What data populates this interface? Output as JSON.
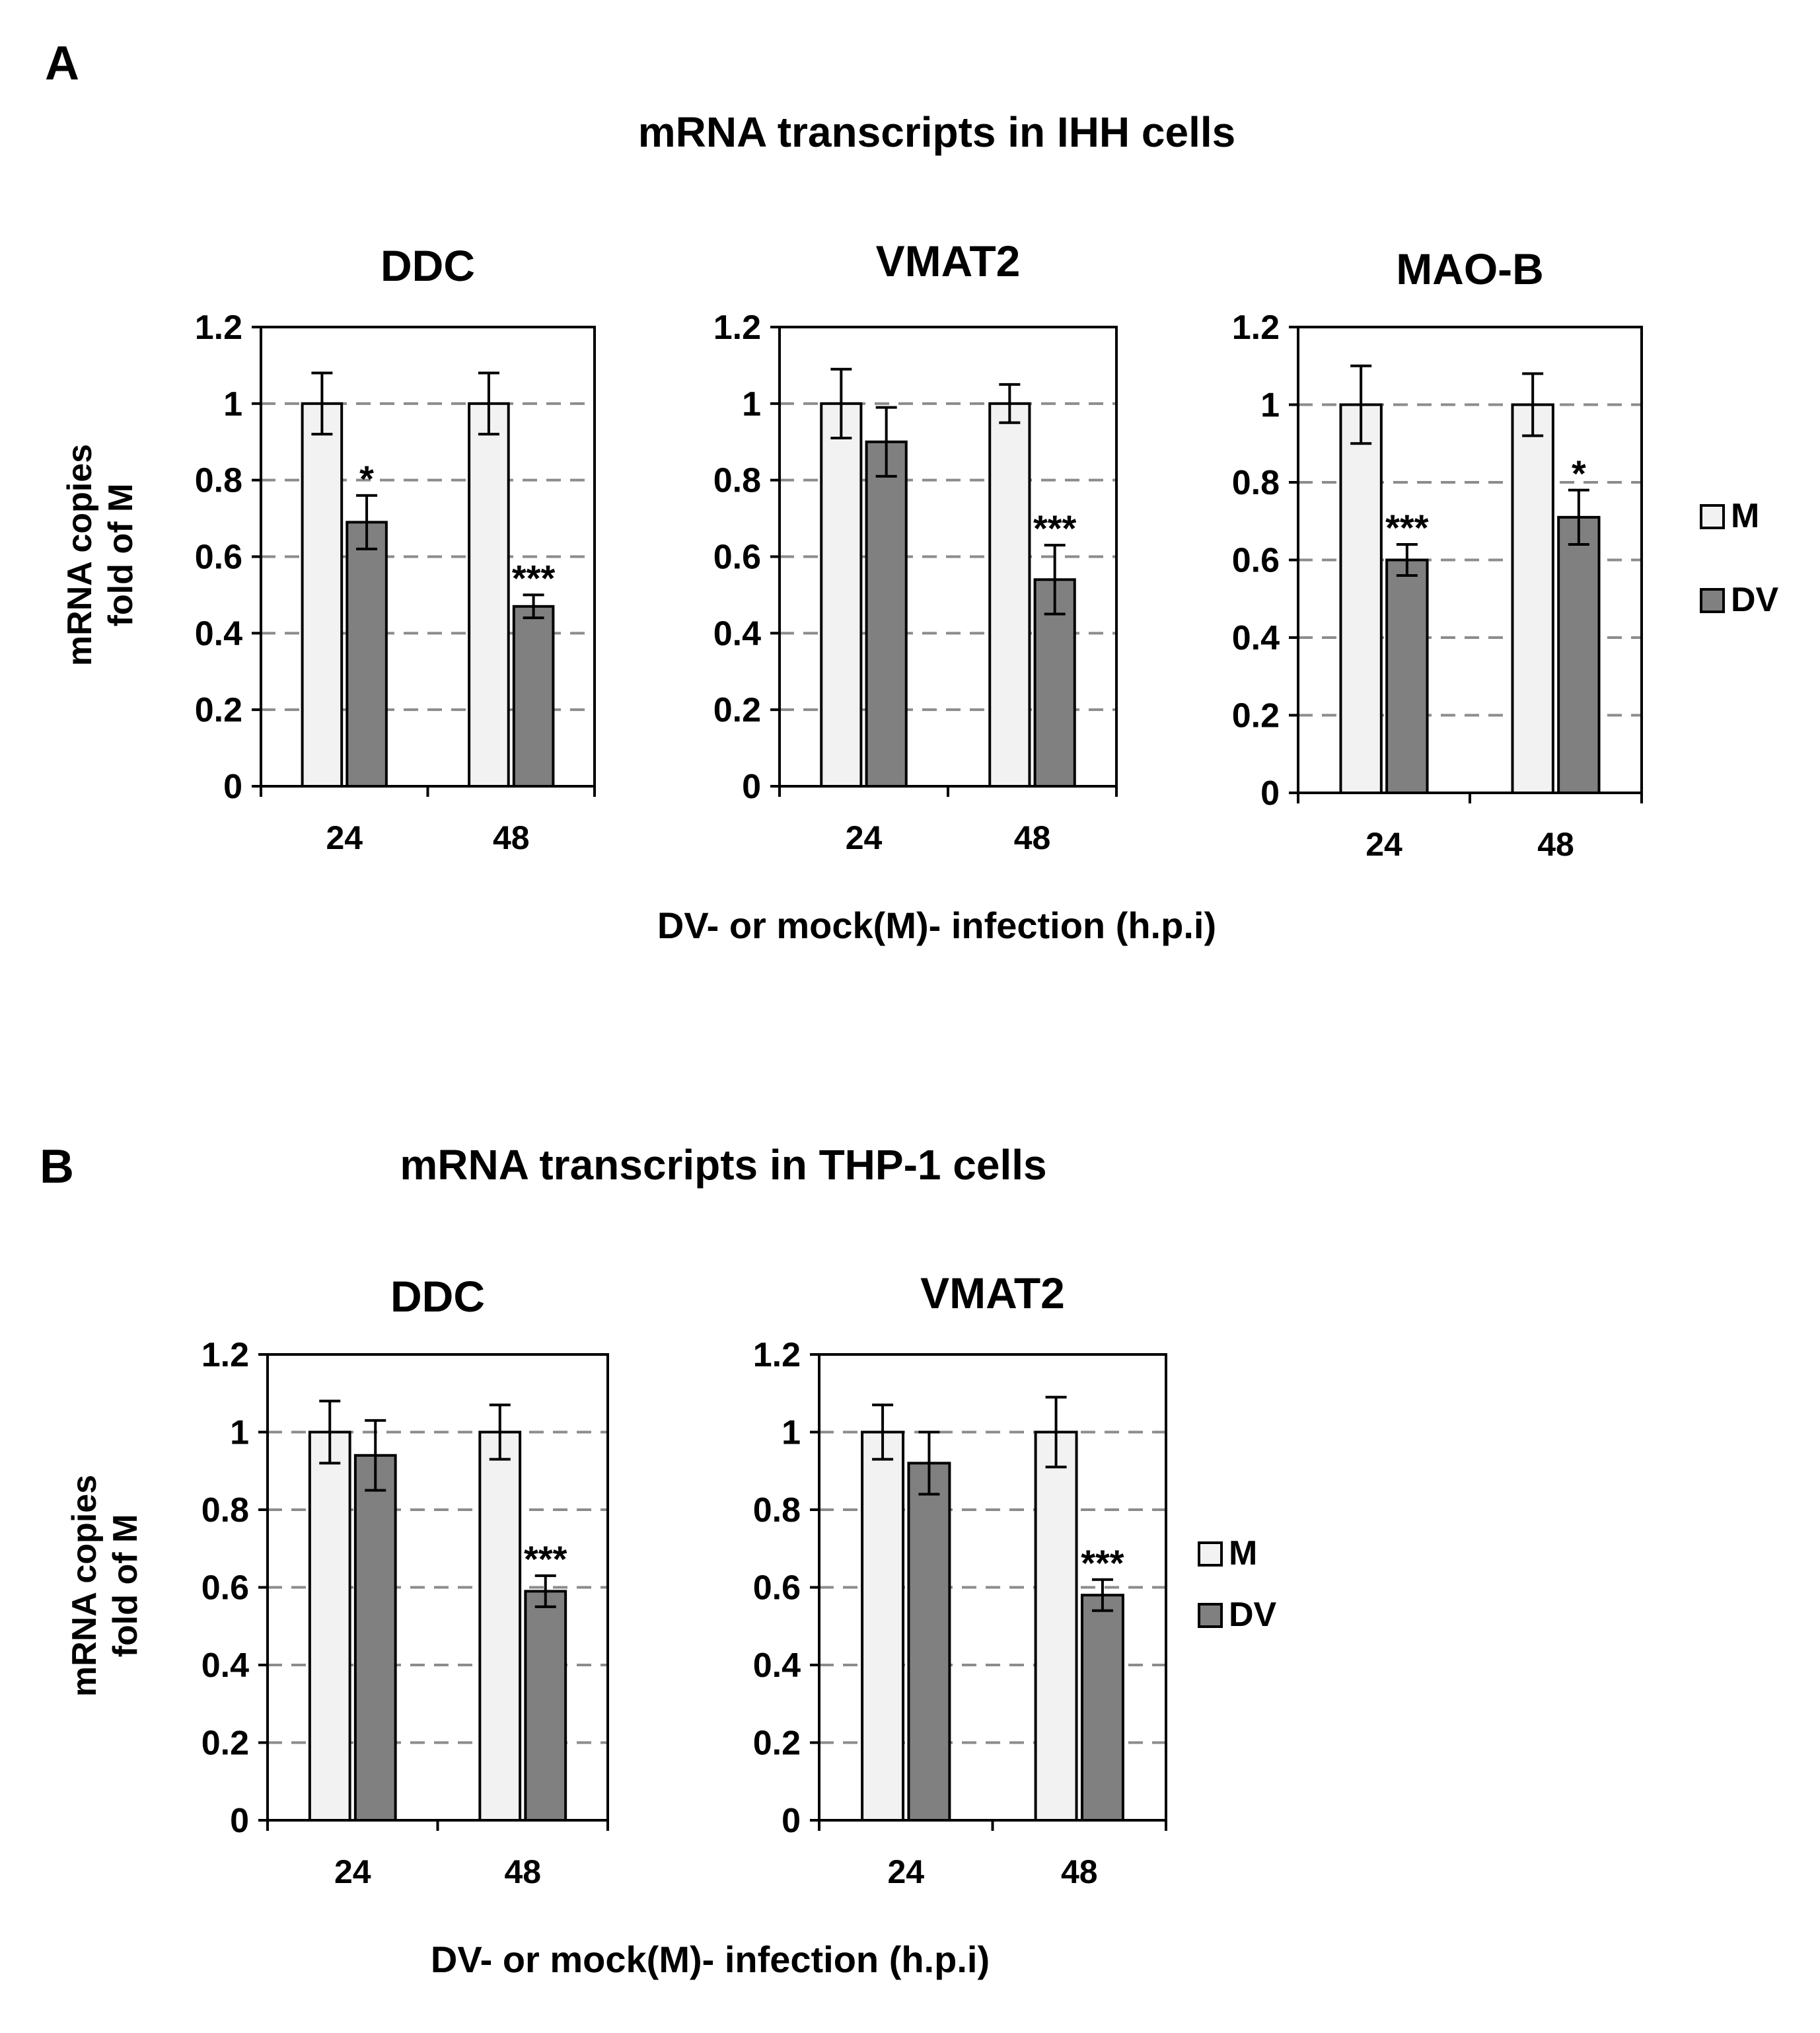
{
  "legend_labels": [
    "M",
    "DV"
  ],
  "colors": {
    "M": "#f2f2f2",
    "DV": "#808080",
    "grid": "#8c8c8c",
    "axis": "#000000"
  },
  "panels": [
    {
      "letter": "A",
      "title": "mRNA transcripts in IHH cells",
      "ylabel_line1": "mRNA copies",
      "ylabel_line2": "fold of M",
      "xlabel": "DV- or mock(M)- infection (h.p.i)"
    },
    {
      "letter": "B",
      "title": "mRNA transcripts in THP-1 cells",
      "ylabel_line1": "mRNA copies",
      "ylabel_line2": "fold of M",
      "xlabel": "DV- or mock(M)- infection (h.p.i)"
    }
  ],
  "chart_data": [
    {
      "panel": "A",
      "type": "bar",
      "title": "DDC",
      "categories": [
        "24",
        "48"
      ],
      "ylim": [
        0,
        1.2
      ],
      "yticks": [
        "0",
        "0.2",
        "0.4",
        "0.6",
        "0.8",
        "1",
        "1.2"
      ],
      "grid": true,
      "legend": [
        "M",
        "DV"
      ],
      "series": [
        {
          "name": "M",
          "values": [
            1.0,
            1.0
          ],
          "errors": [
            0.08,
            0.08
          ],
          "sig": [
            "",
            ""
          ]
        },
        {
          "name": "DV",
          "values": [
            0.69,
            0.47
          ],
          "errors": [
            0.07,
            0.03
          ],
          "sig": [
            "*",
            "***"
          ]
        }
      ]
    },
    {
      "panel": "A",
      "type": "bar",
      "title": "VMAT2",
      "categories": [
        "24",
        "48"
      ],
      "ylim": [
        0,
        1.2
      ],
      "yticks": [
        "0",
        "0.2",
        "0.4",
        "0.6",
        "0.8",
        "1",
        "1.2"
      ],
      "grid": true,
      "legend": [
        "M",
        "DV"
      ],
      "series": [
        {
          "name": "M",
          "values": [
            1.0,
            1.0
          ],
          "errors": [
            0.09,
            0.05
          ],
          "sig": [
            "",
            ""
          ]
        },
        {
          "name": "DV",
          "values": [
            0.9,
            0.54
          ],
          "errors": [
            0.09,
            0.09
          ],
          "sig": [
            "",
            "***"
          ]
        }
      ]
    },
    {
      "panel": "A",
      "type": "bar",
      "title": "MAO-B",
      "categories": [
        "24",
        "48"
      ],
      "ylim": [
        0,
        1.2
      ],
      "yticks": [
        "0",
        "0.2",
        "0.4",
        "0.6",
        "0.8",
        "1",
        "1.2"
      ],
      "grid": true,
      "legend": [
        "M",
        "DV"
      ],
      "series": [
        {
          "name": "M",
          "values": [
            1.0,
            1.0
          ],
          "errors": [
            0.1,
            0.08
          ],
          "sig": [
            "",
            ""
          ]
        },
        {
          "name": "DV",
          "values": [
            0.6,
            0.71
          ],
          "errors": [
            0.04,
            0.07
          ],
          "sig": [
            "***",
            "*"
          ]
        }
      ]
    },
    {
      "panel": "B",
      "type": "bar",
      "title": "DDC",
      "categories": [
        "24",
        "48"
      ],
      "ylim": [
        0,
        1.2
      ],
      "yticks": [
        "0",
        "0.2",
        "0.4",
        "0.6",
        "0.8",
        "1",
        "1.2"
      ],
      "grid": true,
      "legend": [
        "M",
        "DV"
      ],
      "series": [
        {
          "name": "M",
          "values": [
            1.0,
            1.0
          ],
          "errors": [
            0.08,
            0.07
          ],
          "sig": [
            "",
            ""
          ]
        },
        {
          "name": "DV",
          "values": [
            0.94,
            0.59
          ],
          "errors": [
            0.09,
            0.04
          ],
          "sig": [
            "",
            "***"
          ]
        }
      ]
    },
    {
      "panel": "B",
      "type": "bar",
      "title": "VMAT2",
      "categories": [
        "24",
        "48"
      ],
      "ylim": [
        0,
        1.2
      ],
      "yticks": [
        "0",
        "0.2",
        "0.4",
        "0.6",
        "0.8",
        "1",
        "1.2"
      ],
      "grid": true,
      "legend": [
        "M",
        "DV"
      ],
      "series": [
        {
          "name": "M",
          "values": [
            1.0,
            1.0
          ],
          "errors": [
            0.07,
            0.09
          ],
          "sig": [
            "",
            ""
          ]
        },
        {
          "name": "DV",
          "values": [
            0.92,
            0.58
          ],
          "errors": [
            0.08,
            0.04
          ],
          "sig": [
            "",
            "***"
          ]
        }
      ]
    }
  ]
}
